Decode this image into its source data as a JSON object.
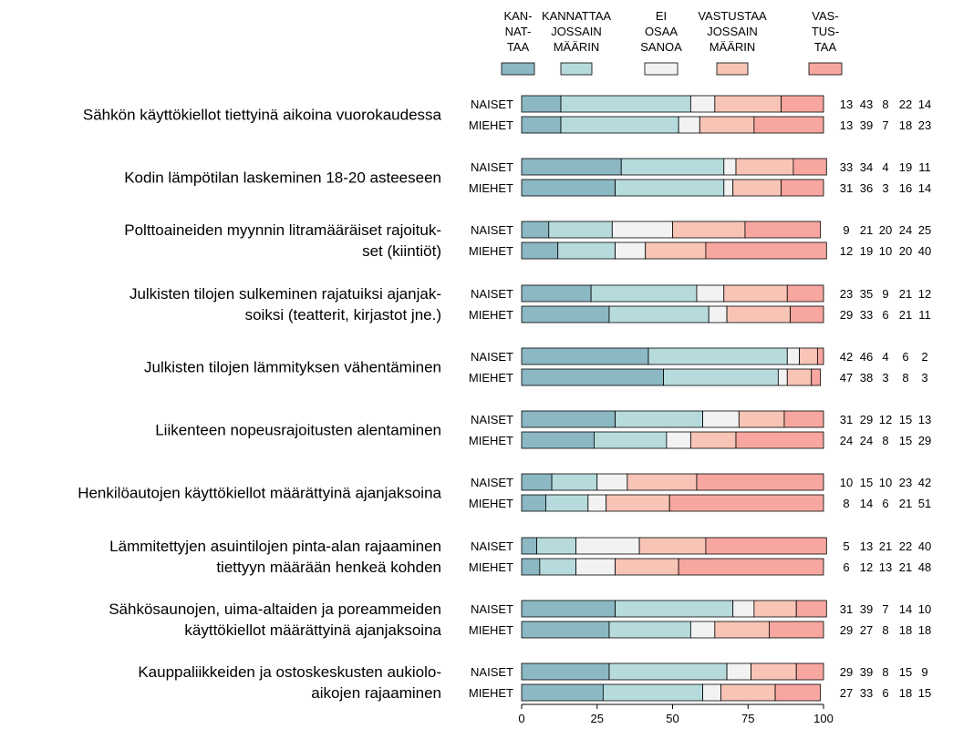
{
  "chart_data": {
    "type": "bar",
    "stacked": true,
    "orientation": "horizontal",
    "xlim": [
      0,
      100
    ],
    "xticks": [
      0,
      25,
      50,
      75,
      100
    ],
    "legend_position": "top",
    "legend": [
      {
        "lines": [
          "KAN-",
          "NAT-",
          "TAA"
        ],
        "color": "#8bb8c3"
      },
      {
        "lines": [
          "KANNATTAA",
          "JOSSAIN",
          "MÄÄRIN"
        ],
        "color": "#b7dbdd"
      },
      {
        "lines": [
          "EI",
          "OSAA",
          "SANOA"
        ],
        "color": "#f2f2f2"
      },
      {
        "lines": [
          "VASTUSTAA",
          "JOSSAIN",
          "MÄÄRIN"
        ],
        "color": "#f7c4b6"
      },
      {
        "lines": [
          "VAS-",
          "TUS-",
          "TAA"
        ],
        "color": "#f8a7a0"
      }
    ],
    "group_labels": [
      "NAISET",
      "MIEHET"
    ],
    "categories": [
      {
        "label": [
          "Sähkön käyttökiellot tiettyinä aikoina vuorokaudessa"
        ],
        "naiset": [
          13,
          43,
          8,
          22,
          14
        ],
        "miehet": [
          13,
          39,
          7,
          18,
          23
        ]
      },
      {
        "label": [
          "Kodin lämpötilan laskeminen 18-20 asteeseen"
        ],
        "naiset": [
          33,
          34,
          4,
          19,
          11
        ],
        "miehet": [
          31,
          36,
          3,
          16,
          14
        ]
      },
      {
        "label": [
          "Polttoaineiden myynnin litramääräiset rajoituk-",
          "set (kiintiöt)"
        ],
        "naiset": [
          9,
          21,
          20,
          24,
          25
        ],
        "miehet": [
          12,
          19,
          10,
          20,
          40
        ]
      },
      {
        "label": [
          "Julkisten tilojen sulkeminen rajatuiksi ajanjak-",
          "soiksi (teatterit, kirjastot jne.)"
        ],
        "naiset": [
          23,
          35,
          9,
          21,
          12
        ],
        "miehet": [
          29,
          33,
          6,
          21,
          11
        ]
      },
      {
        "label": [
          "Julkisten tilojen lämmityksen vähentäminen"
        ],
        "naiset": [
          42,
          46,
          4,
          6,
          2
        ],
        "miehet": [
          47,
          38,
          3,
          8,
          3
        ]
      },
      {
        "label": [
          "Liikenteen nopeusrajoitusten alentaminen"
        ],
        "naiset": [
          31,
          29,
          12,
          15,
          13
        ],
        "miehet": [
          24,
          24,
          8,
          15,
          29
        ]
      },
      {
        "label": [
          "Henkilöautojen käyttökiellot määrättyinä ajanjaksoina"
        ],
        "naiset": [
          10,
          15,
          10,
          23,
          42
        ],
        "miehet": [
          8,
          14,
          6,
          21,
          51
        ]
      },
      {
        "label": [
          "Lämmitettyjen asuintilojen pinta-alan rajaaminen",
          "tiettyyn määrään henkeä kohden"
        ],
        "naiset": [
          5,
          13,
          21,
          22,
          40
        ],
        "miehet": [
          6,
          12,
          13,
          21,
          48
        ]
      },
      {
        "label": [
          "Sähkösaunojen, uima-altaiden ja poreammeiden",
          "käyttökiellot määrättyinä ajanjaksoina"
        ],
        "naiset": [
          31,
          39,
          7,
          14,
          10
        ],
        "miehet": [
          29,
          27,
          8,
          18,
          18
        ]
      },
      {
        "label": [
          "Kauppaliikkeiden ja ostoskeskusten aukiolo-",
          "aikojen rajaaminen"
        ],
        "naiset": [
          29,
          39,
          8,
          15,
          9
        ],
        "miehet": [
          27,
          33,
          6,
          18,
          15
        ]
      }
    ]
  }
}
